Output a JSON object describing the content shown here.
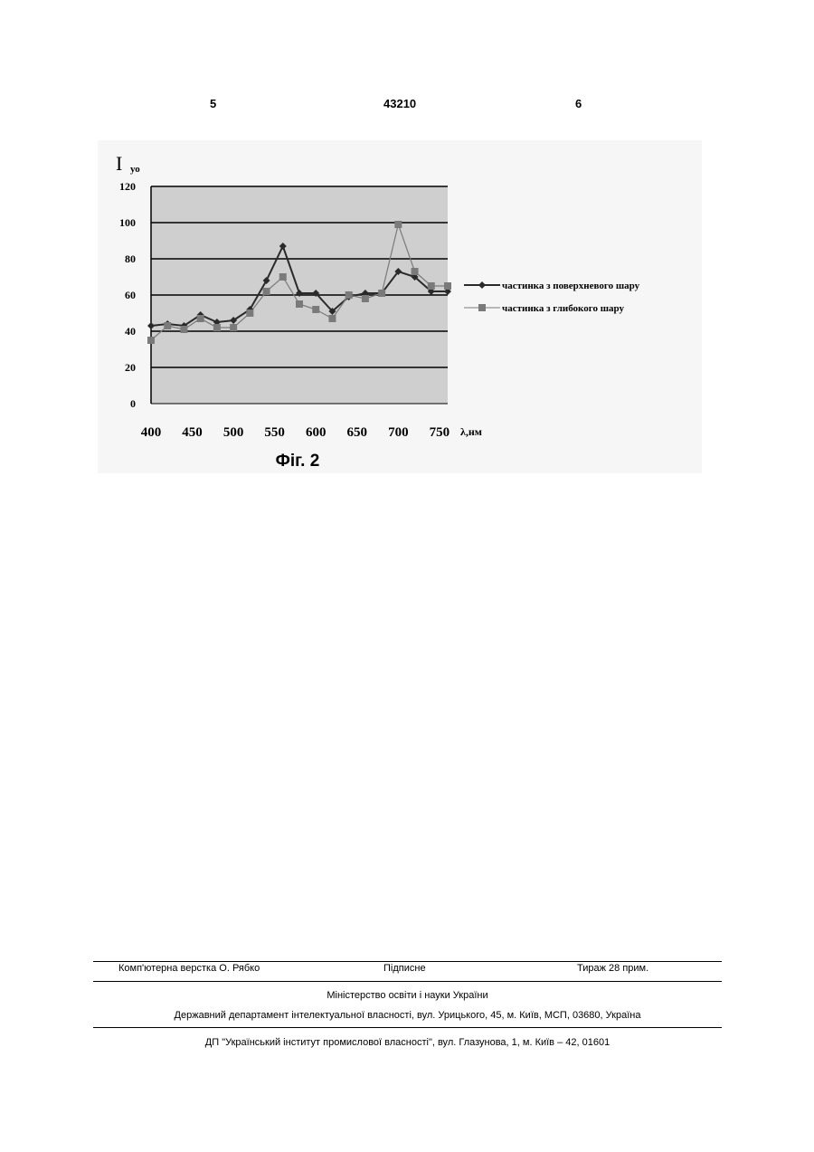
{
  "header": {
    "left_page": "5",
    "patent_no": "43210",
    "right_page": "6"
  },
  "figure": {
    "caption": "Фіг. 2"
  },
  "chart_data": {
    "type": "line",
    "ylabel_main": "I",
    "ylabel_sub": "уо",
    "xlabel": "λ,нм",
    "x_ticks": [
      "400",
      "450",
      "500",
      "550",
      "600",
      "650",
      "700",
      "750"
    ],
    "y_ticks": [
      "0",
      "20",
      "40",
      "60",
      "80",
      "100",
      "120"
    ],
    "xlim": [
      400,
      760
    ],
    "ylim": [
      0,
      120
    ],
    "grid": true,
    "legend_position": "right",
    "x": [
      400,
      420,
      440,
      460,
      480,
      500,
      520,
      540,
      560,
      580,
      600,
      620,
      640,
      660,
      680,
      700,
      720,
      740,
      760
    ],
    "series": [
      {
        "name": "частинка з поверхневого шару",
        "color": "#2a2a2a",
        "marker": "diamond",
        "values": [
          43,
          44,
          43,
          49,
          45,
          46,
          52,
          68,
          87,
          61,
          61,
          51,
          59,
          61,
          61,
          73,
          70,
          62,
          62
        ]
      },
      {
        "name": "частинка з глибокого шару",
        "color": "#7a7a7a",
        "marker": "square",
        "values": [
          35,
          43,
          41,
          47,
          42,
          42,
          50,
          62,
          70,
          55,
          52,
          47,
          60,
          58,
          61,
          99,
          73,
          65,
          65
        ]
      }
    ]
  },
  "footer": {
    "typesetter": "Комп'ютерна верстка О. Рябко",
    "signed": "Підписне",
    "print_run": "Тираж 28 прим.",
    "ministry": "Міністерство освіти і науки України",
    "department": "Державний департамент інтелектуальної власності, вул. Урицького, 45, м. Київ, МСП, 03680, Україна",
    "institute": "ДП \"Український інститут промислової власності\", вул. Глазунова, 1, м. Київ – 42, 01601"
  }
}
